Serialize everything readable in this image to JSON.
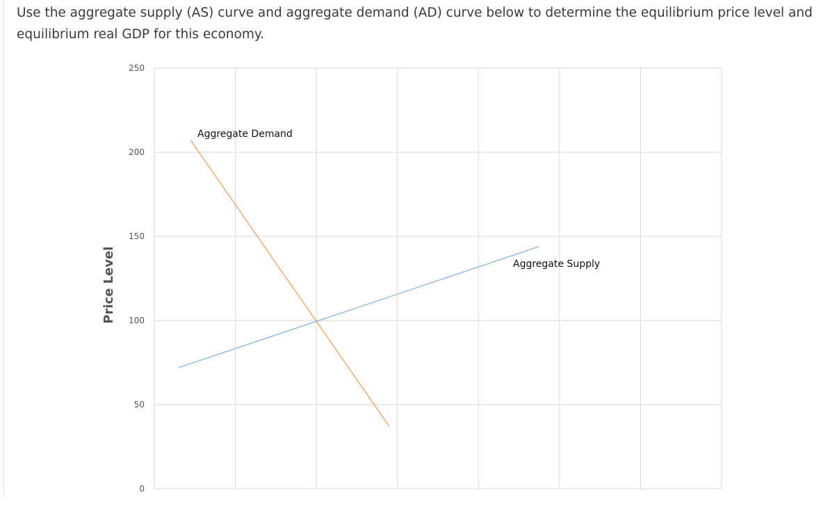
{
  "question": {
    "text": "Use the aggregate supply (AS) curve and aggregate demand (AD) curve below to determine the equilibrium price level and equilibrium real GDP for this economy."
  },
  "colors": {
    "aggregate_demand": "#f4a76c",
    "aggregate_supply": "#8fb8dc",
    "grid": "#d9d9d9",
    "question_text": "#3a3a3a"
  },
  "chart_data": {
    "type": "line",
    "title": "",
    "xlabel": "",
    "ylabel": "Price Level",
    "xlim": [
      0,
      14000
    ],
    "ylim": [
      0,
      250
    ],
    "x_gridlines": [
      2000,
      4000,
      6000,
      8000,
      10000,
      12000,
      14000
    ],
    "y_ticks": [
      0,
      50,
      100,
      150,
      200,
      250
    ],
    "y_tick_labels": [
      "0",
      "50",
      "100",
      "150",
      "200",
      "250"
    ],
    "grid": true,
    "series": [
      {
        "name": "Aggregate Demand",
        "points": [
          [
            900,
            207
          ],
          [
            5800,
            37
          ]
        ]
      },
      {
        "name": "Aggregate Supply",
        "points": [
          [
            600,
            72
          ],
          [
            9500,
            144
          ]
        ]
      }
    ]
  }
}
